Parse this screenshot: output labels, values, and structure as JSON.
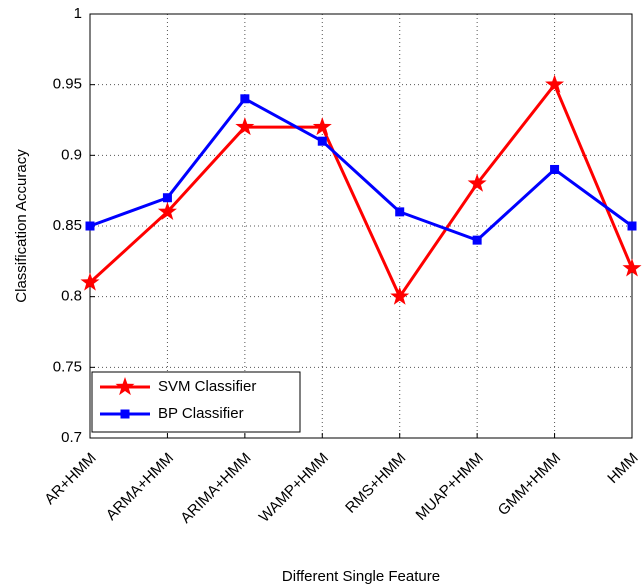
{
  "chart_data": {
    "type": "line",
    "x_label": "Different Single Feature",
    "y_label": "Classification Accuracy",
    "categories": [
      "AR+HMM",
      "ARMA+HMM",
      "ARIMA+HMM",
      "WAMP+HMM",
      "RMS+HMM",
      "MUAP+HMM",
      "GMM+HMM",
      "HMM"
    ],
    "series": [
      {
        "name": "SVM Classifier",
        "color": "#ff0000",
        "marker": "star",
        "values": [
          0.81,
          0.86,
          0.92,
          0.92,
          0.8,
          0.88,
          0.95,
          0.82
        ]
      },
      {
        "name": "BP Classifier",
        "color": "#0000ff",
        "marker": "square",
        "values": [
          0.85,
          0.87,
          0.94,
          0.91,
          0.86,
          0.84,
          0.89,
          0.85
        ]
      }
    ],
    "ylim": [
      0.7,
      1
    ],
    "yticks": [
      0.7,
      0.75,
      0.8,
      0.85,
      0.9,
      0.95,
      1
    ],
    "grid": true,
    "legend": "lower left"
  }
}
